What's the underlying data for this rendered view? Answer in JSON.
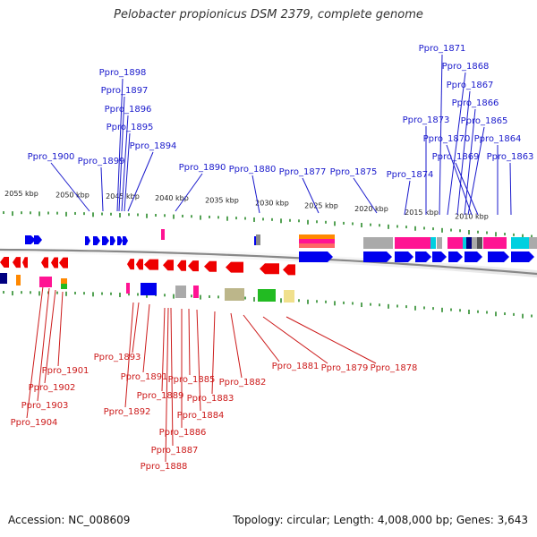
{
  "title": "Pelobacter propionicus DSM 2379, complete genome",
  "footer": {
    "accession": "Accession: NC_008609",
    "summary": "Topology: circular; Length: 4,008,000 bp; Genes: 3,643"
  },
  "scale_labels": [
    "2055 kbp",
    "2050 kbp",
    "2045 kbp",
    "2040 kbp",
    "2035 kbp",
    "2030 kbp",
    "2025 kbp",
    "2020 kbp",
    "2015 kbp",
    "2010 kbp"
  ],
  "top_genes": [
    "Ppro_1898",
    "Ppro_1897",
    "Ppro_1896",
    "Ppro_1895",
    "Ppro_1894",
    "Ppro_1900",
    "Ppro_1899",
    "Ppro_1890",
    "Ppro_1880",
    "Ppro_1877",
    "Ppro_1875",
    "Ppro_1874",
    "Ppro_1873",
    "Ppro_1871",
    "Ppro_1868",
    "Ppro_1867",
    "Ppro_1866",
    "Ppro_1865",
    "Ppro_1870",
    "Ppro_1869",
    "Ppro_1864",
    "Ppro_1863"
  ],
  "bottom_genes": [
    "Ppro_1901",
    "Ppro_1902",
    "Ppro_1903",
    "Ppro_1904",
    "Ppro_1893",
    "Ppro_1891",
    "Ppro_1892",
    "Ppro_1889",
    "Ppro_1885",
    "Ppro_1883",
    "Ppro_1884",
    "Ppro_1886",
    "Ppro_1887",
    "Ppro_1888",
    "Ppro_1882",
    "Ppro_1881",
    "Ppro_1879",
    "Ppro_1878"
  ],
  "colors": {
    "forward": "#0000ee",
    "reverse": "#ee0000",
    "top_label": "#1a1acc",
    "bottom_label": "#cc1a1a",
    "tick": "#2a8a2a",
    "backbone": "#888888",
    "magenta": "#ff1493",
    "cyan": "#00d0e0",
    "gray": "#aaaaaa",
    "olive": "#bcb68a",
    "green": "#22bb22",
    "yellow": "#f0e08c",
    "orange": "#ff8800",
    "navy": "#000080"
  }
}
